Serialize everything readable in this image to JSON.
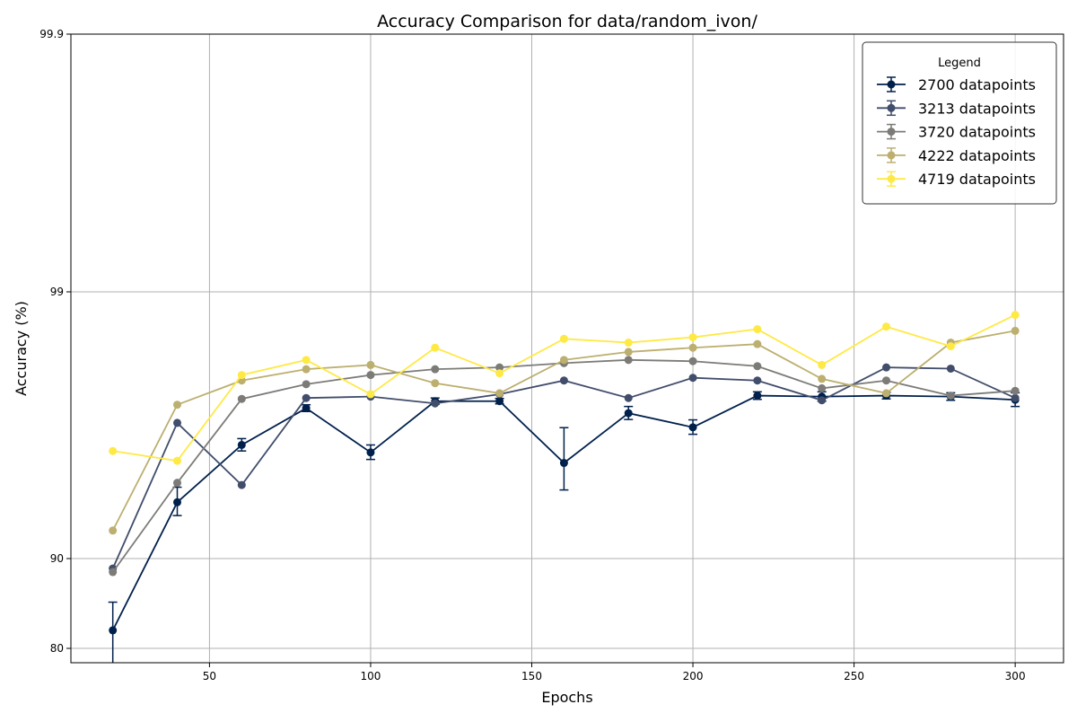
{
  "chart_data": {
    "type": "line",
    "title": "Accuracy Comparison for data/random_ivon/",
    "xlabel": "Epochs",
    "ylabel": "Accuracy (%)",
    "y_scale": "logit-like (tick labels 80, 90, 99, 99.9)",
    "xlim": [
      7,
      315
    ],
    "ylim": [
      79.5,
      99.9
    ],
    "x_ticks": [
      50,
      100,
      150,
      200,
      250,
      300
    ],
    "x_tick_labels": [
      "50",
      "100",
      "150",
      "200",
      "250",
      "300"
    ],
    "y_ticks": [
      80,
      90,
      99,
      99.9
    ],
    "y_tick_labels": [
      "80",
      "90",
      "99",
      "99.9"
    ],
    "grid": true,
    "legend": {
      "title": "Legend",
      "placement": "top-right"
    },
    "x": [
      20,
      40,
      60,
      80,
      100,
      120,
      140,
      160,
      180,
      200,
      220,
      240,
      260,
      280,
      300
    ],
    "series": [
      {
        "name": "2700 datapoints",
        "color": "#00204c",
        "values": [
          82.6,
          93.85,
          96.25,
          97.27,
          96.0,
          97.43,
          97.43,
          95.62,
          97.15,
          96.78,
          97.55,
          97.53,
          97.55,
          97.53,
          97.46
        ],
        "errors": [
          3.4,
          0.75,
          0.2,
          0.08,
          0.25,
          0.07,
          0.06,
          1.15,
          0.16,
          0.2,
          0.08,
          0.1,
          0.07,
          0.08,
          0.15
        ]
      },
      {
        "name": "3213 datapoints",
        "color": "#414d6b",
        "values": [
          89.2,
          96.9,
          94.7,
          97.5,
          97.53,
          97.38,
          97.58,
          97.85,
          97.5,
          97.9,
          97.85,
          97.45,
          98.08,
          98.06,
          97.5
        ]
      },
      {
        "name": "3720 datapoints",
        "color": "#7c7b78",
        "values": [
          88.9,
          94.8,
          97.48,
          97.78,
          97.95,
          98.05,
          98.08,
          98.15,
          98.2,
          98.18,
          98.1,
          97.7,
          97.85,
          97.55,
          97.65
        ]
      },
      {
        "name": "4222 datapoints",
        "color": "#bcaf6f",
        "values": [
          92.15,
          97.35,
          97.85,
          98.05,
          98.12,
          97.8,
          97.6,
          98.2,
          98.32,
          98.38,
          98.43,
          97.88,
          97.6,
          98.45,
          98.6
        ]
      },
      {
        "name": "4719 datapoints",
        "color": "#ffe945",
        "values": [
          96.05,
          95.7,
          97.95,
          98.2,
          97.58,
          98.38,
          97.98,
          98.5,
          98.45,
          98.52,
          98.62,
          98.12,
          98.65,
          98.4,
          98.78
        ]
      }
    ]
  }
}
